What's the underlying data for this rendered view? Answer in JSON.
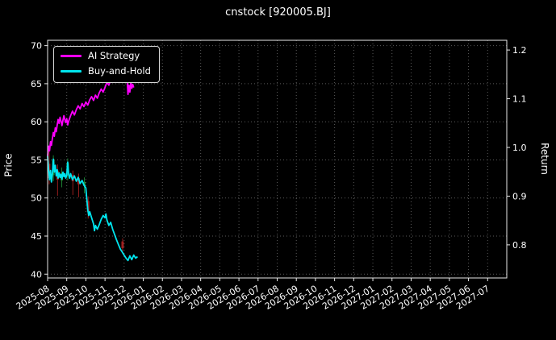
{
  "chart_data": {
    "type": "line",
    "title": "cnstock [920005.BJ]",
    "ylabel_left": "Price",
    "ylabel_right": "Return",
    "grid": true,
    "legend_position": "upper-left",
    "price_ylim": [
      39.5,
      70.7
    ],
    "return_ylim": [
      0.732,
      1.22
    ],
    "price_ticks": [
      40,
      45,
      50,
      55,
      60,
      65,
      70
    ],
    "return_ticks": [
      0.8,
      0.9,
      1.0,
      1.1,
      1.2
    ],
    "x_months_range": [
      0,
      24
    ],
    "x_ticklabels": [
      "2025-08",
      "2025-09",
      "2025-10",
      "2025-11",
      "2025-12",
      "2026-01",
      "2026-02",
      "2026-03",
      "2026-04",
      "2026-05",
      "2026-06",
      "2026-07",
      "2026-08",
      "2026-09",
      "2026-10",
      "2026-11",
      "2026-12",
      "2027-01",
      "2027-02",
      "2027-03",
      "2027-04",
      "2027-05",
      "2027-06",
      "2027-07"
    ],
    "series": [
      {
        "name": "AI Strategy",
        "color": "#ff00ff",
        "points": [
          [
            0,
            55.5
          ],
          [
            0.05,
            56.8
          ],
          [
            0.1,
            56.2
          ],
          [
            0.15,
            57.4
          ],
          [
            0.2,
            56.9
          ],
          [
            0.25,
            57.8
          ],
          [
            0.3,
            58.6
          ],
          [
            0.35,
            58.1
          ],
          [
            0.4,
            59.2
          ],
          [
            0.45,
            58.7
          ],
          [
            0.5,
            59.6
          ],
          [
            0.55,
            60.3
          ],
          [
            0.6,
            59.8
          ],
          [
            0.65,
            60.6
          ],
          [
            0.7,
            60.1
          ],
          [
            0.75,
            59.5
          ],
          [
            0.8,
            60.2
          ],
          [
            0.85,
            60.8
          ],
          [
            0.9,
            60.3
          ],
          [
            0.95,
            59.9
          ],
          [
            1,
            60.4
          ],
          [
            1.05,
            59.6
          ],
          [
            1.1,
            60.1
          ],
          [
            1.2,
            60.8
          ],
          [
            1.3,
            61.4
          ],
          [
            1.4,
            60.9
          ],
          [
            1.5,
            61.6
          ],
          [
            1.6,
            62.1
          ],
          [
            1.7,
            61.7
          ],
          [
            1.8,
            62.4
          ],
          [
            1.9,
            62
          ],
          [
            2,
            62.6
          ],
          [
            2.1,
            62.2
          ],
          [
            2.2,
            62.9
          ],
          [
            2.3,
            63.3
          ],
          [
            2.4,
            62.8
          ],
          [
            2.5,
            63.5
          ],
          [
            2.6,
            63.1
          ],
          [
            2.7,
            63.8
          ],
          [
            2.8,
            64.3
          ],
          [
            2.9,
            63.9
          ],
          [
            3,
            64.5
          ],
          [
            3.1,
            65.2
          ],
          [
            3.2,
            64.8
          ],
          [
            3.3,
            65.6
          ],
          [
            3.4,
            66.3
          ],
          [
            3.5,
            65.9
          ],
          [
            3.6,
            66.7
          ],
          [
            3.7,
            67.4
          ],
          [
            3.8,
            68
          ],
          [
            3.9,
            68.6
          ],
          [
            3.95,
            69
          ],
          [
            4,
            68.2
          ],
          [
            4.05,
            68.7
          ],
          [
            4.1,
            67.3
          ],
          [
            4.15,
            65.8
          ],
          [
            4.2,
            63.6
          ],
          [
            4.25,
            64.8
          ],
          [
            4.3,
            63.9
          ],
          [
            4.35,
            65.1
          ],
          [
            4.4,
            64.4
          ],
          [
            4.45,
            64.9
          ],
          [
            4.5,
            64.5
          ]
        ]
      },
      {
        "name": "Buy-and-Hold",
        "color": "#00e5ee",
        "points": [
          [
            0,
            55.5
          ],
          [
            0.05,
            53.8
          ],
          [
            0.1,
            52.4
          ],
          [
            0.15,
            53.6
          ],
          [
            0.2,
            52.1
          ],
          [
            0.25,
            53.2
          ],
          [
            0.3,
            55.1
          ],
          [
            0.35,
            53.4
          ],
          [
            0.4,
            54.3
          ],
          [
            0.45,
            52.9
          ],
          [
            0.5,
            53.7
          ],
          [
            0.55,
            52.6
          ],
          [
            0.6,
            53.3
          ],
          [
            0.65,
            52.7
          ],
          [
            0.7,
            53.1
          ],
          [
            0.75,
            52.5
          ],
          [
            0.8,
            53.4
          ],
          [
            0.85,
            52.8
          ],
          [
            0.9,
            53.2
          ],
          [
            0.95,
            52.6
          ],
          [
            1,
            53
          ],
          [
            1.05,
            54.7
          ],
          [
            1.1,
            53.1
          ],
          [
            1.15,
            52.6
          ],
          [
            1.2,
            53.2
          ],
          [
            1.3,
            52.4
          ],
          [
            1.4,
            52.9
          ],
          [
            1.5,
            52.2
          ],
          [
            1.6,
            52.7
          ],
          [
            1.7,
            51.9
          ],
          [
            1.8,
            52.3
          ],
          [
            1.9,
            51.7
          ],
          [
            2,
            51.3
          ],
          [
            2.05,
            49.8
          ],
          [
            2.1,
            48.4
          ],
          [
            2.15,
            47.7
          ],
          [
            2.2,
            48.2
          ],
          [
            2.3,
            47.4
          ],
          [
            2.4,
            46.6
          ],
          [
            2.45,
            45.7
          ],
          [
            2.5,
            46.4
          ],
          [
            2.6,
            45.9
          ],
          [
            2.7,
            46.5
          ],
          [
            2.8,
            47.2
          ],
          [
            2.9,
            47.7
          ],
          [
            3,
            47.4
          ],
          [
            3.05,
            47.9
          ],
          [
            3.1,
            47.1
          ],
          [
            3.2,
            46.4
          ],
          [
            3.3,
            46.8
          ],
          [
            3.4,
            45.9
          ],
          [
            3.5,
            45.2
          ],
          [
            3.6,
            44.5
          ],
          [
            3.7,
            43.9
          ],
          [
            3.8,
            43.3
          ],
          [
            3.9,
            42.9
          ],
          [
            4,
            42.5
          ],
          [
            4.1,
            42.1
          ],
          [
            4.2,
            41.8
          ],
          [
            4.3,
            42.4
          ],
          [
            4.4,
            41.9
          ],
          [
            4.5,
            42.5
          ],
          [
            4.6,
            42.1
          ],
          [
            4.7,
            42.3
          ]
        ]
      }
    ],
    "candles": [
      {
        "x": 0.08,
        "open": 54.5,
        "close": 52.6,
        "high": 56.2,
        "low": 51.8,
        "color": "#a82222"
      },
      {
        "x": 0.3,
        "open": 53.0,
        "close": 55.0,
        "high": 55.6,
        "low": 52.2,
        "color": "#1f8f3a"
      },
      {
        "x": 0.52,
        "open": 53.6,
        "close": 52.4,
        "high": 54.4,
        "low": 50.3,
        "color": "#a82222"
      },
      {
        "x": 0.74,
        "open": 52.3,
        "close": 53.3,
        "high": 54.0,
        "low": 51.4,
        "color": "#1f8f3a"
      },
      {
        "x": 1.05,
        "open": 53.1,
        "close": 54.6,
        "high": 55.2,
        "low": 52.3,
        "color": "#1f8f3a"
      },
      {
        "x": 1.32,
        "open": 53.0,
        "close": 52.2,
        "high": 53.6,
        "low": 50.4,
        "color": "#a82222"
      },
      {
        "x": 1.62,
        "open": 52.6,
        "close": 51.8,
        "high": 53.2,
        "low": 50.1,
        "color": "#a82222"
      },
      {
        "x": 1.92,
        "open": 51.6,
        "close": 52.1,
        "high": 52.7,
        "low": 50.6,
        "color": "#1f8f3a"
      },
      {
        "x": 2.12,
        "open": 49.6,
        "close": 48.2,
        "high": 50.2,
        "low": 47.3,
        "color": "#a82222"
      },
      {
        "x": 3.92,
        "open": 44.3,
        "close": 43.4,
        "high": 44.7,
        "low": 43.0,
        "color": "#a82222"
      }
    ]
  }
}
